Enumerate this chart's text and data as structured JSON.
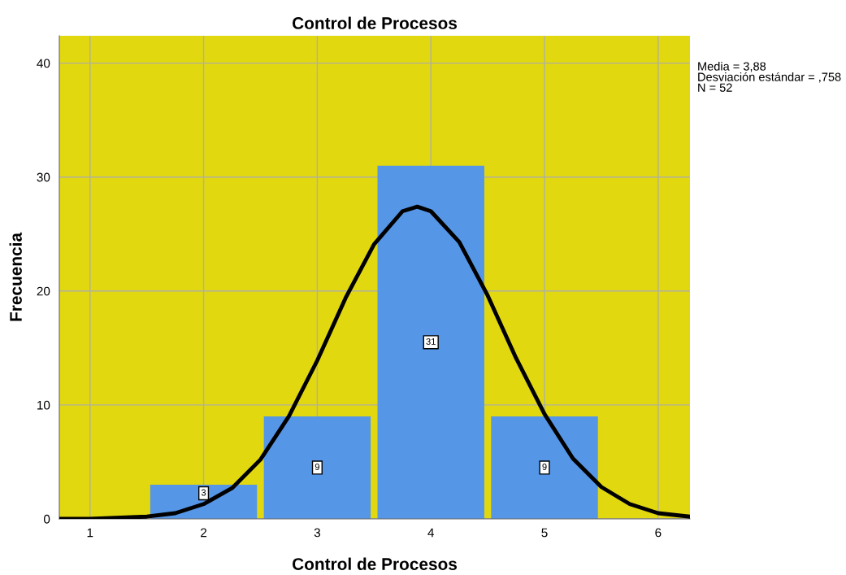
{
  "chart_data": {
    "type": "histogram",
    "title": "Control de Procesos",
    "xlabel": "Control de Procesos",
    "ylabel": "Frecuencia",
    "bins": [
      1.5,
      2.5,
      3.5,
      4.5,
      5.5
    ],
    "values": [
      3,
      9,
      31,
      9
    ],
    "color": "#5596e6",
    "value_labels": [
      "3",
      "9",
      "31",
      "9"
    ],
    "series": [
      {
        "type": "line",
        "color": "#000000",
        "x": [
          0.73,
          1.0,
          1.5,
          1.75,
          2.0,
          2.25,
          2.5,
          2.75,
          3.0,
          3.25,
          3.5,
          3.75,
          3.88,
          4.0,
          4.25,
          4.5,
          4.75,
          5.0,
          5.25,
          5.5,
          5.75,
          6.0,
          6.28
        ],
        "values": [
          0.0,
          0.0,
          0.2,
          0.5,
          1.3,
          2.7,
          5.2,
          9.0,
          13.9,
          19.4,
          24.1,
          27.0,
          27.4,
          27.0,
          24.3,
          19.6,
          14.1,
          9.2,
          5.3,
          2.8,
          1.3,
          0.5,
          0.2
        ]
      }
    ],
    "xlim": [
      0.73,
      6.28
    ],
    "ylim": [
      0,
      42.4
    ],
    "xticks": [
      1,
      2,
      3,
      4,
      5,
      6
    ],
    "yticks": [
      0,
      10,
      20,
      30,
      40
    ],
    "grid": true,
    "annotations": [
      "Media = 3,88\nDesviación estándar = ,758\nN = 52"
    ]
  }
}
